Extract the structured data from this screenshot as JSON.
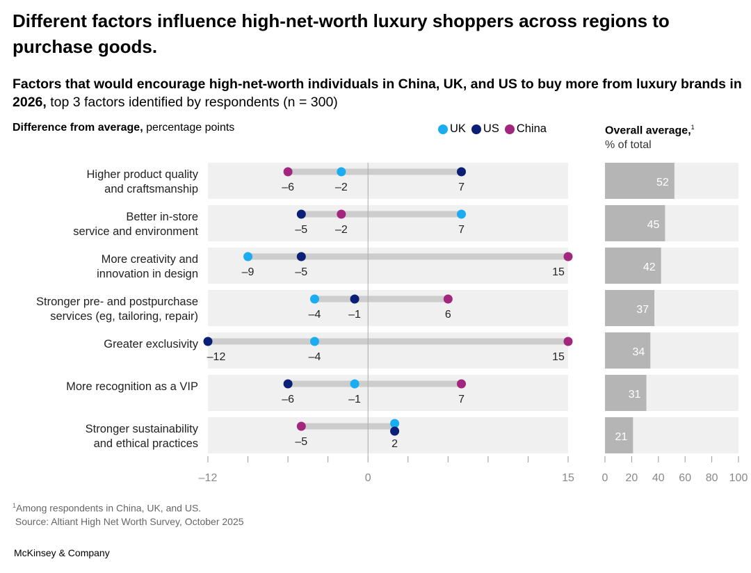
{
  "title": "Different factors influence high-net-worth luxury shoppers across regions to purchase goods.",
  "subtitle_bold": "Factors that would encourage high-net-worth individuals in China, UK, and US to buy more from luxury brands in 2026,",
  "subtitle_rest": " top 3 factors identified by respondents (n = 300)",
  "footnote": "Among respondents in China, UK, and US.",
  "footnote_mark": "1",
  "source": "Source: Altiant High Net Worth Survey, October 2025",
  "logo": "McKinsey & Company",
  "chart_data": [
    {
      "type": "dot",
      "title": "Difference from average,",
      "title_rest": " percentage points",
      "xlim": [
        -12,
        15
      ],
      "xticks": [
        -12,
        -9,
        -6,
        -3,
        0,
        3,
        6,
        9,
        12,
        15
      ],
      "xtick_labels": [
        "–12",
        "0",
        "15"
      ],
      "legend": [
        {
          "name": "UK",
          "color": "#1BADF0"
        },
        {
          "name": "US",
          "color": "#0B1F77"
        },
        {
          "name": "China",
          "color": "#A3267E"
        }
      ],
      "categories": [
        [
          "Higher product quality",
          "and craftsmanship"
        ],
        [
          "Better in-store",
          "service and environment"
        ],
        [
          "More creativity and",
          "innovation in design"
        ],
        [
          "Stronger pre- and postpurchase",
          "services (eg, tailoring, repair)"
        ],
        [
          "Greater exclusivity"
        ],
        [
          "More recognition as a VIP"
        ],
        [
          "Stronger sustainability",
          "and ethical practices"
        ]
      ],
      "series": [
        {
          "name": "UK",
          "values": [
            -2,
            7,
            -9,
            -4,
            -4,
            -1,
            2
          ]
        },
        {
          "name": "US",
          "values": [
            7,
            -5,
            -5,
            -1,
            -12,
            -6,
            2
          ]
        },
        {
          "name": "China",
          "values": [
            -6,
            -2,
            15,
            6,
            15,
            7,
            -5
          ]
        }
      ]
    },
    {
      "type": "bar",
      "title": "Overall average,",
      "title_mark": "1",
      "subtitle": "% of total",
      "xlim": [
        0,
        100
      ],
      "xticks": [
        0,
        20,
        40,
        60,
        80,
        100
      ],
      "values": [
        52,
        45,
        42,
        37,
        34,
        31,
        21
      ],
      "bar_color": "#B5B5B5"
    }
  ]
}
